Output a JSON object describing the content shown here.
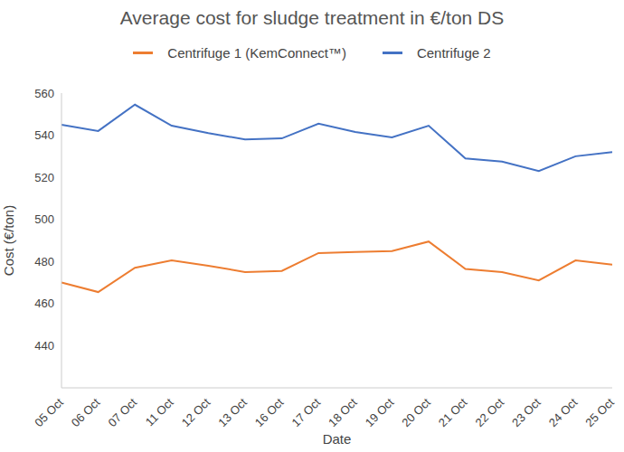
{
  "chart_data": {
    "type": "line",
    "title": "Average cost for sludge treatment in €/ton DS",
    "x_label": "Date",
    "y_label": "Cost (€/ton)",
    "categories": [
      "05 Oct",
      "06 Oct",
      "07 Oct",
      "11 Oct",
      "12 Oct",
      "13 Oct",
      "16 Oct",
      "17 Oct",
      "18 Oct",
      "19 Oct",
      "20 Oct",
      "21 Oct",
      "22 Oct",
      "23 Oct",
      "24 Oct",
      "25 Oct"
    ],
    "series": [
      {
        "name": "Centrifuge 1 (KemConnect™)",
        "color": "#ed7d31",
        "values": [
          470,
          465.5,
          477,
          480.5,
          478,
          475,
          475.5,
          484,
          484.5,
          485,
          489.5,
          476.5,
          475,
          471,
          480.5,
          478.5
        ]
      },
      {
        "name": "Centrifuge 2",
        "color": "#4472c4",
        "values": [
          545,
          542,
          554.5,
          544.5,
          541,
          538,
          538.5,
          545.5,
          541.5,
          539,
          544.5,
          529,
          527.5,
          523,
          530,
          532
        ]
      }
    ],
    "ylim": [
      420,
      560
    ],
    "yticks": [
      440,
      460,
      480,
      500,
      520,
      540,
      560
    ],
    "grid": false,
    "legend": "top"
  }
}
